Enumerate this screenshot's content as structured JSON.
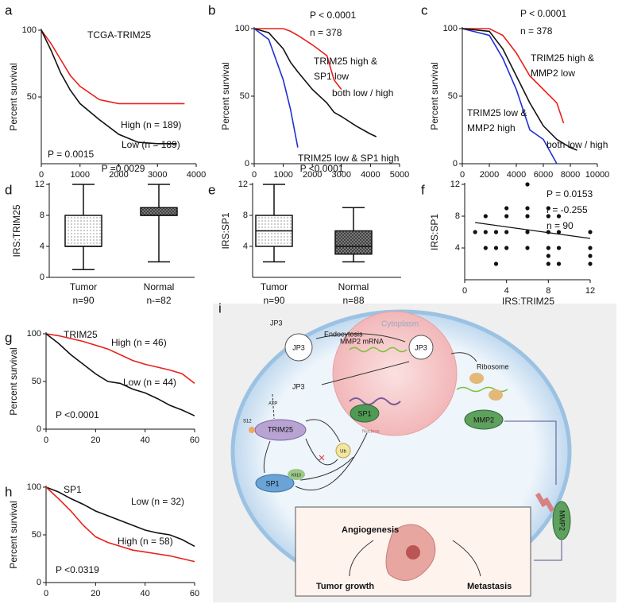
{
  "chart_data": [
    {
      "panel": "a",
      "type": "line",
      "title": "TCGA-TRIM25",
      "ylabel": "Percent survival",
      "annotations": [
        "P = 0.0015"
      ],
      "x": [
        0,
        250,
        500,
        750,
        1000,
        1500,
        2000,
        2500,
        3000,
        3500,
        3700
      ],
      "series": [
        {
          "name": "High (n = 189)",
          "color": "#e8201c",
          "values": [
            100,
            90,
            78,
            66,
            58,
            48,
            45,
            45,
            45,
            45,
            45
          ]
        },
        {
          "name": "Low (n = 189)",
          "color": "#111111",
          "values": [
            100,
            85,
            68,
            55,
            45,
            33,
            22,
            16,
            15,
            15,
            null
          ]
        }
      ],
      "xlim": [
        0,
        4000
      ],
      "xticks": [
        0,
        1000,
        2000,
        3000,
        4000
      ],
      "ylim": [
        0,
        100
      ],
      "yticks": [
        50,
        100
      ],
      "labels_colored": false
    },
    {
      "panel": "b",
      "type": "line",
      "ylabel": "Percent survival",
      "annotations": [
        "P < 0.0001",
        "n = 378"
      ],
      "x": [
        0,
        500,
        1000,
        1250,
        1500,
        2000,
        2500,
        2750,
        3000,
        3500,
        4000,
        4200
      ],
      "series": [
        {
          "name": [
            "TRIM25 high &",
            "SP1 low"
          ],
          "color": "#e8201c",
          "values": [
            100,
            100,
            100,
            98,
            95,
            88,
            80,
            62,
            55,
            null,
            null,
            null
          ]
        },
        {
          "name": [
            "both low / high"
          ],
          "color": "#111111",
          "values": [
            100,
            97,
            85,
            75,
            68,
            55,
            45,
            38,
            35,
            28,
            22,
            20
          ]
        },
        {
          "name": [
            "TRIM25 low & SP1 high"
          ],
          "color": "#1f2fd0",
          "values": [
            100,
            92,
            62,
            40,
            12,
            null,
            null,
            null,
            null,
            null,
            null,
            null
          ]
        }
      ],
      "xlim": [
        0,
        5000
      ],
      "xticks": [
        0,
        1000,
        2000,
        3000,
        4000,
        5000
      ],
      "ylim": [
        0,
        100
      ],
      "yticks": [
        0,
        50,
        100
      ],
      "labels_colored": true
    },
    {
      "panel": "c",
      "type": "line",
      "ylabel": "Percent survival",
      "annotations": [
        "P < 0.0001",
        "n = 378"
      ],
      "x": [
        0,
        2000,
        3000,
        4000,
        5000,
        6000,
        7000,
        7500,
        8000,
        8500
      ],
      "series": [
        {
          "name": [
            "TRIM25 high &",
            "MMP2 low"
          ],
          "color": "#e8201c",
          "values": [
            100,
            100,
            95,
            82,
            65,
            55,
            45,
            30,
            null,
            null
          ]
        },
        {
          "name": [
            "TRIM25 low &",
            "MMP2 high"
          ],
          "color": "#1f2fd0",
          "values": [
            100,
            95,
            78,
            55,
            25,
            18,
            0,
            null,
            null,
            null
          ]
        },
        {
          "name": [
            "both low / high"
          ],
          "color": "#111111",
          "values": [
            100,
            98,
            85,
            65,
            45,
            28,
            18,
            15,
            12,
            10
          ]
        }
      ],
      "xlim": [
        0,
        10000
      ],
      "xticks": [
        0,
        2000,
        4000,
        6000,
        8000,
        10000
      ],
      "ylim": [
        0,
        100
      ],
      "yticks": [
        0,
        50,
        100
      ],
      "labels_colored": true
    },
    {
      "panel": "d",
      "type": "box",
      "ylabel": "IRS:TRIM25",
      "annotations": [
        "P =0.0029"
      ],
      "categories": [
        "Tumor",
        "Normal"
      ],
      "category_notes": [
        "n=90",
        "n-=82"
      ],
      "boxes": [
        {
          "min": 1,
          "q1": 4,
          "median": 4,
          "q3": 8,
          "max": 12,
          "fill": "dots"
        },
        {
          "min": 2,
          "q1": 8,
          "median": 8,
          "q3": 9,
          "max": 12,
          "fill": "hatch"
        }
      ],
      "ylim": [
        0,
        12
      ],
      "yticks": [
        0,
        4,
        8,
        12
      ]
    },
    {
      "panel": "e",
      "type": "box",
      "ylabel": "IRS:SP1",
      "annotations": [
        "P <0.0001"
      ],
      "categories": [
        "Tumor",
        "Normal"
      ],
      "category_notes": [
        "n=90",
        "n=88"
      ],
      "boxes": [
        {
          "min": 2,
          "q1": 4,
          "median": 6,
          "q3": 8,
          "max": 12,
          "fill": "dots"
        },
        {
          "min": 2,
          "q1": 3,
          "median": 4,
          "q3": 6,
          "max": 9,
          "fill": "hatch"
        }
      ],
      "ylim": [
        0,
        12
      ],
      "yticks": [
        4,
        8,
        12
      ]
    },
    {
      "panel": "f",
      "type": "scatter",
      "xlabel": "IRS:TRIM25",
      "ylabel": "IRS:SP1",
      "annotations": [
        "P = 0.0153",
        "r = -0.255",
        "n = 90"
      ],
      "x": [
        1,
        2,
        2,
        2,
        3,
        3,
        3,
        4,
        4,
        4,
        4,
        6,
        6,
        6,
        6,
        6,
        8,
        8,
        8,
        8,
        8,
        8,
        9,
        9,
        9,
        9,
        12,
        12,
        12,
        12
      ],
      "values": [
        6,
        6,
        4,
        8,
        6,
        4,
        2,
        6,
        8,
        9,
        4,
        9,
        8,
        6,
        12,
        4,
        9,
        8,
        6,
        4,
        3,
        2,
        6,
        8,
        4,
        2,
        6,
        4,
        3,
        2
      ],
      "color": "#111111",
      "trendline": {
        "x": [
          1,
          12
        ],
        "values": [
          7.2,
          5.2
        ]
      },
      "xlim": [
        0,
        12
      ],
      "xticks": [
        0,
        4,
        8,
        12
      ],
      "ylim": [
        0,
        12
      ],
      "yticks": [
        4,
        8,
        12
      ]
    },
    {
      "panel": "g",
      "type": "line",
      "title": "TRIM25",
      "ylabel": "Percent survival",
      "annotations": [
        "P <0.0001"
      ],
      "x": [
        0,
        5,
        10,
        15,
        20,
        25,
        30,
        35,
        40,
        45,
        50,
        55,
        60
      ],
      "series": [
        {
          "name": "High (n = 46)",
          "color": "#e8201c",
          "values": [
            100,
            98,
            95,
            92,
            88,
            84,
            78,
            72,
            68,
            65,
            62,
            58,
            48
          ]
        },
        {
          "name": "Low (n = 44)",
          "color": "#111111",
          "values": [
            100,
            90,
            78,
            68,
            58,
            50,
            48,
            42,
            38,
            32,
            25,
            20,
            14
          ]
        }
      ],
      "xlim": [
        0,
        60
      ],
      "xticks": [
        0,
        20,
        40,
        60
      ],
      "ylim": [
        0,
        100
      ],
      "yticks": [
        0,
        50,
        100
      ],
      "labels_colored": false
    },
    {
      "panel": "h",
      "type": "line",
      "title": "SP1",
      "ylabel": "Percent survival",
      "annotations": [
        "P <0.0319"
      ],
      "x": [
        0,
        5,
        10,
        15,
        20,
        25,
        30,
        35,
        40,
        45,
        50,
        55,
        60
      ],
      "series": [
        {
          "name": "Low (n = 32)",
          "color": "#111111",
          "values": [
            100,
            95,
            88,
            82,
            75,
            70,
            65,
            60,
            55,
            52,
            50,
            45,
            38
          ]
        },
        {
          "name": "High (n = 58)",
          "color": "#e8201c",
          "values": [
            100,
            88,
            75,
            60,
            48,
            42,
            38,
            34,
            32,
            30,
            28,
            25,
            22
          ]
        }
      ],
      "xlim": [
        0,
        60
      ],
      "xticks": [
        0,
        20,
        40,
        60
      ],
      "ylim": [
        0,
        100
      ],
      "yticks": [
        0,
        50,
        100
      ],
      "labels_colored": false
    }
  ],
  "diagram": {
    "panel": "i",
    "cytoplasm": "Cytoplasm",
    "jp3_outside": "JP3",
    "endocytosis": "Endocytosis",
    "jp3_particle": "JP3",
    "jp3_internal": "JP3",
    "jp3_free": "JP3",
    "atp": "ATP",
    "s12": "S12",
    "trim25": "TRIM25",
    "ub": "Ub",
    "sp1": "SP1",
    "k610": "K610",
    "mmp2_mrna": "MMP2 mRNA",
    "ribosome": "Ribosome",
    "sp1_nuclear": "SP1",
    "nucleus": "Nucleus",
    "mmp2": "MMP2",
    "mmp2_secreted": "MMP2",
    "angiogenesis": "Angiogenesis",
    "tumor_growth": "Tumor growth",
    "metastasis": "Metastasis"
  }
}
